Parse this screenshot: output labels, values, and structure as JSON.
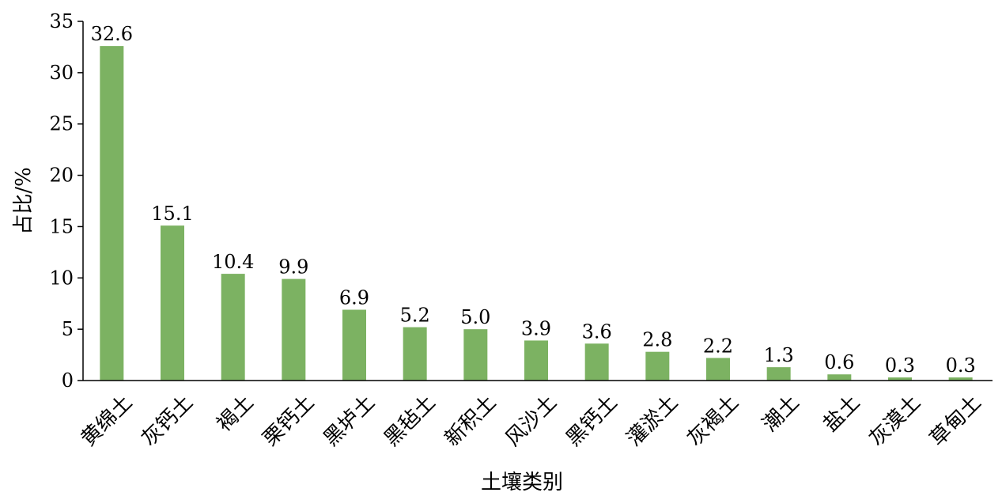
{
  "chart_data": {
    "type": "bar",
    "title": "",
    "xlabel": "土壤类别",
    "ylabel": "占比/%",
    "ylim": [
      0,
      35
    ],
    "yticks": [
      0,
      5,
      10,
      15,
      20,
      25,
      30,
      35
    ],
    "categories": [
      "黄绵土",
      "灰钙土",
      "褐土",
      "栗钙土",
      "黑垆土",
      "黑毡土",
      "新积土",
      "风沙土",
      "黑钙土",
      "灌淤土",
      "灰褐土",
      "潮土",
      "盐土",
      "灰漠土",
      "草甸土"
    ],
    "values": [
      32.6,
      15.1,
      10.4,
      9.9,
      6.9,
      5.2,
      5.0,
      3.9,
      3.6,
      2.8,
      2.2,
      1.3,
      0.6,
      0.3,
      0.3
    ],
    "data_labels": [
      "32.6",
      "15.1",
      "10.4",
      "9.9",
      "6.9",
      "5.2",
      "5.0",
      "3.9",
      "3.6",
      "2.8",
      "2.2",
      "1.3",
      "0.6",
      "0.3",
      "0.3"
    ],
    "grid": false,
    "legend": "none",
    "bar_color": "#7cb262"
  }
}
